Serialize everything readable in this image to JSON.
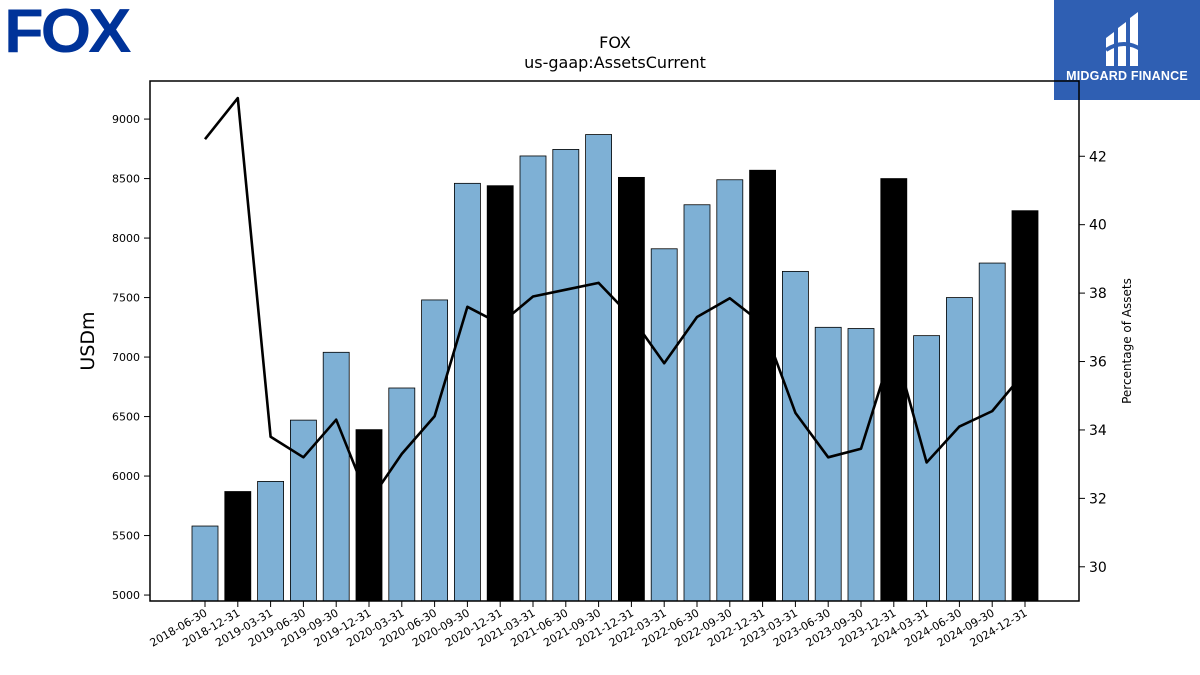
{
  "logos": {
    "left_logo_text": "FOX",
    "right_logo_text": "MIDGARD FINANCE"
  },
  "chart_data": {
    "type": "bar",
    "title": "FOX",
    "subtitle": "us-gaap:AssetsCurrent",
    "ylabel": "USDm",
    "y2label": "Percentage of Assets",
    "ylim": [
      4950,
      9320
    ],
    "y2lim": [
      29,
      44.2
    ],
    "yticks": [
      5000,
      5500,
      6000,
      6500,
      7000,
      7500,
      8000,
      8500,
      9000
    ],
    "y2ticks": [
      30,
      32,
      34,
      36,
      38,
      40,
      42
    ],
    "categories": [
      "2018-06-30",
      "2018-12-31",
      "2019-03-31",
      "2019-06-30",
      "2019-09-30",
      "2019-12-31",
      "2020-03-31",
      "2020-06-30",
      "2020-09-30",
      "2020-12-31",
      "2021-03-31",
      "2021-06-30",
      "2021-09-30",
      "2021-12-31",
      "2022-03-31",
      "2022-06-30",
      "2022-09-30",
      "2022-12-31",
      "2023-03-31",
      "2023-06-30",
      "2023-09-30",
      "2023-12-31",
      "2024-03-31",
      "2024-06-30",
      "2024-09-30",
      "2024-12-31"
    ],
    "series": [
      {
        "type": "bar",
        "values": [
          5580,
          5870,
          5955,
          6470,
          7040,
          6390,
          6740,
          7480,
          8460,
          8440,
          8690,
          8745,
          8870,
          8510,
          7910,
          8280,
          8490,
          8570,
          7720,
          7250,
          7240,
          8500,
          7180,
          7500,
          7790,
          8230
        ],
        "highlight": [
          false,
          true,
          false,
          false,
          false,
          true,
          false,
          false,
          false,
          true,
          false,
          false,
          false,
          true,
          false,
          false,
          false,
          true,
          false,
          false,
          false,
          true,
          false,
          false,
          false,
          true
        ],
        "color": "#7eb0d5",
        "highlight_color": "#000000"
      },
      {
        "type": "line",
        "axis": "right",
        "values": [
          42.5,
          43.7,
          33.8,
          33.2,
          34.3,
          31.9,
          33.3,
          34.4,
          37.6,
          37.1,
          37.9,
          38.1,
          38.3,
          37.3,
          35.95,
          37.3,
          37.85,
          37.1,
          34.5,
          33.2,
          33.45,
          36.5,
          33.05,
          34.1,
          34.55,
          35.7
        ],
        "color": "#000000"
      }
    ],
    "grid": false
  }
}
